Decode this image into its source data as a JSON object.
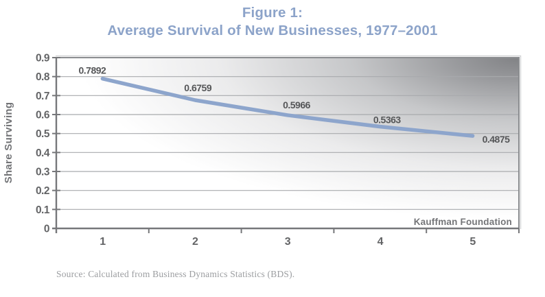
{
  "figure": {
    "title_line1": "Figure 1:",
    "title_line2": "Average Survival of New Businesses, 1977–2001",
    "source": "Source: Calculated from Business Dynamics Statistics (BDS).",
    "watermark": "Kauffman Foundation"
  },
  "chart_data": {
    "type": "line",
    "title": "Average Survival of New Businesses, 1977–2001",
    "xlabel": "",
    "ylabel": "Share Surviving",
    "x": [
      1,
      2,
      3,
      4,
      5
    ],
    "series": [
      {
        "name": "Share surviving",
        "values": [
          0.7892,
          0.6759,
          0.5966,
          0.5363,
          0.4875
        ]
      }
    ],
    "point_labels": [
      "0.7892",
      "0.6759",
      "0.5966",
      "0.5363",
      "0.4875"
    ],
    "xtick_labels": [
      "1",
      "2",
      "3",
      "4",
      "5"
    ],
    "ytick_labels": [
      "0.9",
      "0.8",
      "0.7",
      "0.6",
      "0.5",
      "0.4",
      "0.3",
      "0.2",
      "0.1",
      "0"
    ],
    "ylim": [
      0,
      0.9
    ],
    "grid": true,
    "legend": "none",
    "annotation": "Kauffman Foundation",
    "colors": {
      "line": "#8DA5CC",
      "title": "#8CA3C9",
      "data_label": "#555658",
      "tick_label": "#636466",
      "axis": "#76777A",
      "gridline": "#A8AAAD",
      "plot_border": "#8B8D90",
      "plot_outer_edge": "#D3D4D6",
      "watermark": "#747578",
      "axis_title": "#737477",
      "source": "#9B9DA0",
      "gradient_corner": "#818285"
    }
  }
}
